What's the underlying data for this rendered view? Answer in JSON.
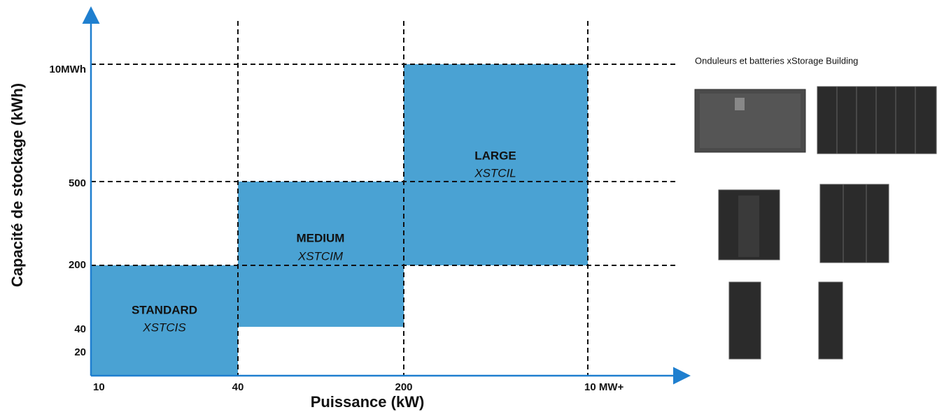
{
  "axes": {
    "x_title": "Puissance (kW)",
    "y_title": "Capacité de stockage (kWh)"
  },
  "x_ticks": [
    "10",
    "40",
    "200",
    "10 MW+"
  ],
  "y_ticks": [
    "10MWh",
    "500",
    "200",
    "40",
    "20"
  ],
  "zones": [
    {
      "name": "STANDARD",
      "code": "XSTCIS"
    },
    {
      "name": "MEDIUM",
      "code": "XSTCIM"
    },
    {
      "name": "LARGE",
      "code": "XSTCIL"
    }
  ],
  "caption": "Onduleurs et batteries xStorage Building"
}
